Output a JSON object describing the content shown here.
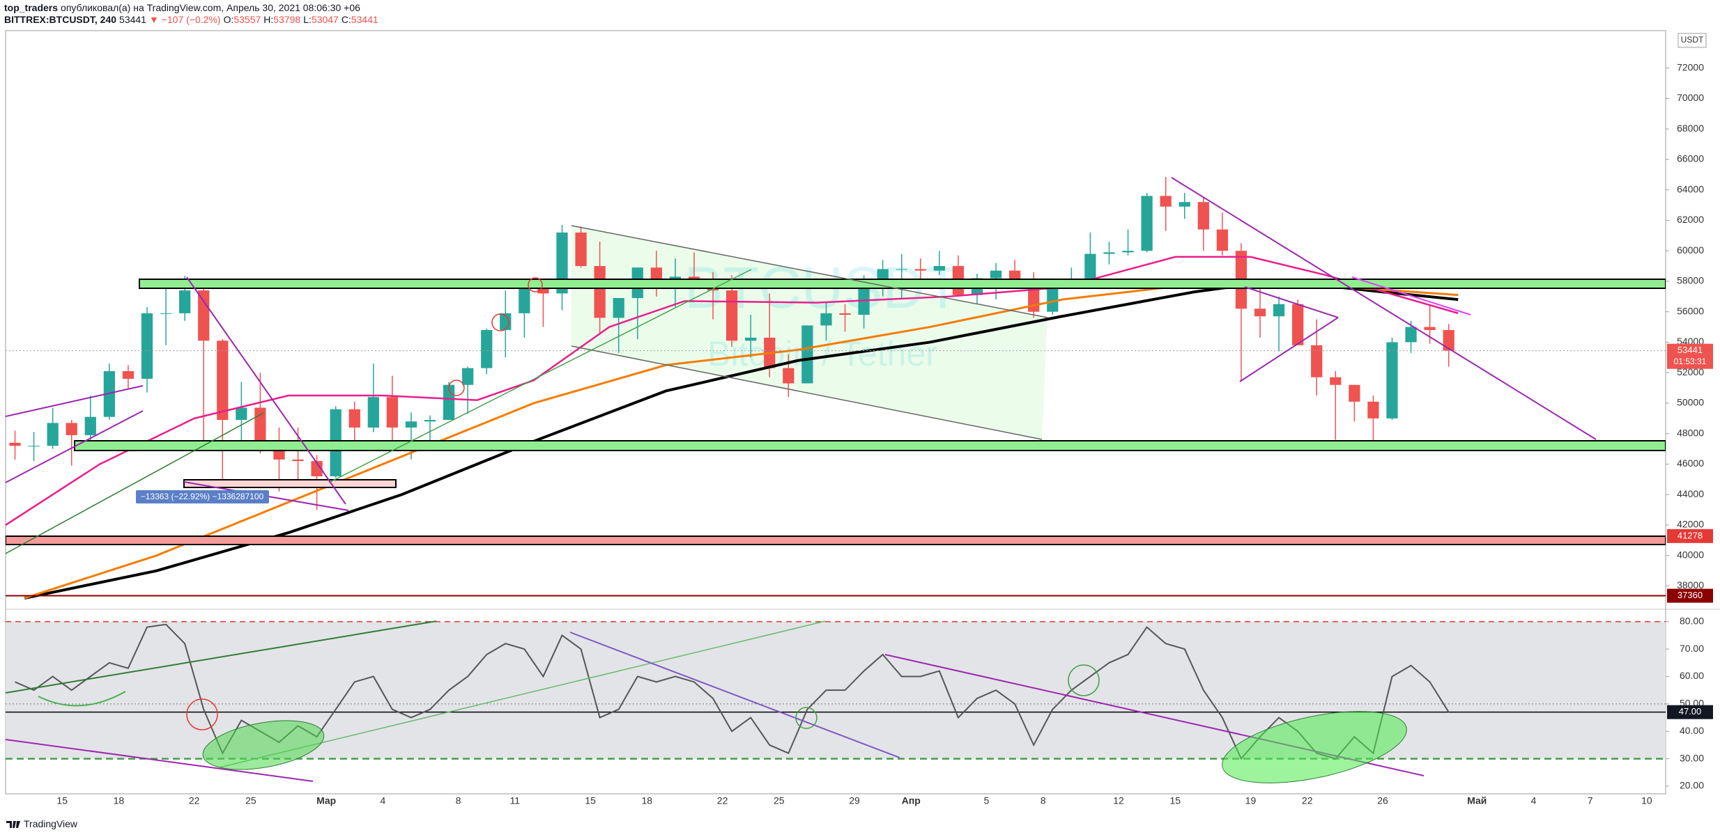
{
  "header": {
    "publisher": "top_traders",
    "published": "опубликовал(а) на TradingView.com, Апрель 30, 2021 08:06:30 +06",
    "symbol": "BITTREX:BTCUSDT, 240",
    "last": 53441,
    "change": "▼ −107 (−0.2%)",
    "ohlc": [
      {
        "label": "O:",
        "value": 53557
      },
      {
        "label": "H:",
        "value": 53798
      },
      {
        "label": "L:",
        "value": 53047
      },
      {
        "label": "C:",
        "value": 53441
      }
    ]
  },
  "footer": "TradingView",
  "chart_data": [
    {
      "type": "candlestick",
      "currency": "USDT",
      "watermark": {
        "symbol": "BTCUSDT",
        "name": "Bitcoin / Tether"
      },
      "annotation": "−13363 (−22.92%) −1336287100",
      "up_color": "#26a69a",
      "down_color": "#ef5350",
      "xlim": [
        "02-12",
        "05-11"
      ],
      "ylim": [
        37065,
        74450
      ],
      "yticks": [
        38000,
        40000,
        42000,
        44000,
        46000,
        48000,
        50000,
        52000,
        54000,
        56000,
        58000,
        60000,
        62000,
        64000,
        66000,
        68000,
        70000,
        72000
      ],
      "x": [
        "02-12",
        "02-13",
        "02-14",
        "02-15",
        "02-16",
        "02-17",
        "02-18",
        "02-19",
        "02-20",
        "02-21",
        "02-22",
        "02-23",
        "02-24",
        "02-25",
        "02-26",
        "02-27",
        "02-28",
        "03-01",
        "03-02",
        "03-03",
        "03-04",
        "03-05",
        "03-06",
        "03-07",
        "03-08",
        "03-09",
        "03-10",
        "03-11",
        "03-12",
        "03-13",
        "03-14",
        "03-15",
        "03-16",
        "03-17",
        "03-18",
        "03-19",
        "03-20",
        "03-21",
        "03-22",
        "03-23",
        "03-24",
        "03-25",
        "03-26",
        "03-27",
        "03-28",
        "03-29",
        "03-30",
        "03-31",
        "04-01",
        "04-02",
        "04-03",
        "04-04",
        "04-05",
        "04-06",
        "04-07",
        "04-08",
        "04-09",
        "04-10",
        "04-11",
        "04-12",
        "04-13",
        "04-14",
        "04-15",
        "04-16",
        "04-17",
        "04-18",
        "04-19",
        "04-20",
        "04-21",
        "04-22",
        "04-23",
        "04-24",
        "04-25",
        "04-26",
        "04-27",
        "04-28",
        "04-29"
      ],
      "open": [
        47400,
        47200,
        47200,
        48700,
        47900,
        49100,
        52100,
        51600,
        55900,
        55900,
        57400,
        54100,
        48900,
        49700,
        47000,
        46300,
        46200,
        45200,
        49600,
        48400,
        50400,
        48400,
        48800,
        48900,
        51200,
        52300,
        54800,
        55900,
        57800,
        57200,
        61200,
        59000,
        55600,
        56900,
        58900,
        57600,
        58300,
        58100,
        57400,
        54100,
        54300,
        52300,
        51300,
        55100,
        55900,
        55800,
        57600,
        58800,
        58800,
        58700,
        59000,
        57100,
        58200,
        58700,
        58000,
        56000,
        58100,
        58100,
        59800,
        59900,
        60000,
        63600,
        62900,
        63200,
        61400,
        60000,
        56200,
        55700,
        56500,
        53800,
        51700,
        51200,
        50100,
        49000,
        54000,
        55000,
        54800
      ],
      "high": [
        48200,
        48100,
        49700,
        48900,
        50500,
        52600,
        52500,
        56300,
        57500,
        58350,
        57500,
        54200,
        51400,
        52000,
        48400,
        48400,
        46600,
        49800,
        50100,
        52600,
        51800,
        49400,
        49200,
        51400,
        52400,
        54900,
        57400,
        58100,
        58000,
        61700,
        61600,
        60600,
        56900,
        58900,
        60000,
        59500,
        59900,
        58600,
        58400,
        55800,
        57200,
        53200,
        55100,
        56600,
        56500,
        58400,
        59400,
        59800,
        59500,
        60000,
        59700,
        58500,
        59200,
        59400,
        58600,
        58200,
        58900,
        61200,
        60600,
        61400,
        63800,
        64850,
        63800,
        63500,
        62500,
        60500,
        57600,
        57000,
        56800,
        55500,
        52100,
        51200,
        50500,
        54300,
        55400,
        56400,
        55200
      ],
      "low": [
        46300,
        46200,
        47000,
        45900,
        47200,
        48900,
        50900,
        50700,
        53800,
        55400,
        47000,
        44900,
        47000,
        46700,
        44200,
        45000,
        43000,
        45100,
        47100,
        48100,
        47500,
        46300,
        47100,
        48900,
        49300,
        51900,
        53000,
        54300,
        55000,
        56100,
        58900,
        54600,
        53300,
        54200,
        57000,
        56300,
        57800,
        55500,
        53700,
        53000,
        51700,
        50400,
        51300,
        54100,
        54700,
        54900,
        57000,
        56900,
        57900,
        58400,
        57000,
        56500,
        56800,
        57600,
        55600,
        55800,
        57600,
        57900,
        59100,
        59700,
        59900,
        61300,
        62100,
        60000,
        59700,
        51500,
        54300,
        53400,
        53800,
        50500,
        47600,
        48800,
        47100,
        48900,
        53300,
        53900,
        52400
      ],
      "close": [
        47200,
        47200,
        48700,
        47900,
        49100,
        52100,
        51600,
        55900,
        55900,
        57400,
        54100,
        48900,
        49700,
        47000,
        46300,
        46200,
        45200,
        49600,
        48400,
        50400,
        48400,
        48800,
        48900,
        51200,
        52300,
        54800,
        55900,
        57800,
        57200,
        61200,
        59000,
        55600,
        56900,
        58900,
        57600,
        58300,
        58100,
        57400,
        54100,
        54300,
        52300,
        51300,
        55100,
        55900,
        55800,
        57600,
        58800,
        58800,
        58700,
        59000,
        57100,
        58200,
        58700,
        58000,
        56000,
        58100,
        58100,
        59800,
        59900,
        60000,
        63600,
        62900,
        63200,
        61400,
        60000,
        56200,
        55700,
        56500,
        53800,
        51700,
        51200,
        50100,
        49000,
        54000,
        55000,
        54800,
        53441
      ],
      "moving_averages": [
        {
          "color": "#000000",
          "width": 4,
          "x": [
            "02-13",
            "02-20",
            "02-27",
            "03-05",
            "03-12",
            "03-19",
            "03-26",
            "04-02",
            "04-09",
            "04-16",
            "04-19",
            "04-23",
            "04-26",
            "04-30"
          ],
          "values": [
            37200,
            39000,
            41500,
            44000,
            47500,
            50800,
            52800,
            54000,
            55700,
            57300,
            57800,
            57700,
            57300,
            56800
          ]
        },
        {
          "color": "#f57c00",
          "width": 3,
          "x": [
            "02-13",
            "02-20",
            "02-27",
            "03-05",
            "03-12",
            "03-19",
            "03-26",
            "04-02",
            "04-09",
            "04-16",
            "04-23",
            "04-30"
          ],
          "values": [
            37200,
            40000,
            43500,
            46500,
            50000,
            52500,
            53500,
            55000,
            56800,
            57800,
            57700,
            57100
          ]
        },
        {
          "color": "#e91e8c",
          "width": 2.5,
          "x": [
            "02-12",
            "02-17",
            "02-22",
            "02-27",
            "03-04",
            "03-09",
            "03-12",
            "03-16",
            "03-20",
            "03-27",
            "04-03",
            "04-09",
            "04-15",
            "04-19",
            "04-23",
            "04-30"
          ],
          "values": [
            42000,
            46000,
            49000,
            50500,
            50500,
            50200,
            51500,
            55000,
            56700,
            56600,
            57000,
            57600,
            59600,
            59600,
            58400,
            55900
          ]
        }
      ],
      "price_labels": [
        {
          "value": 53441,
          "sub": "01:53:31",
          "color": "#ef5350",
          "line": "dotted"
        },
        {
          "value": 41278,
          "color": "#e53935"
        },
        {
          "value": 37360,
          "color": "#8b0000",
          "line": "solid"
        }
      ]
    },
    {
      "type": "line",
      "color": "#555555",
      "xlim": [
        "02-12",
        "05-11"
      ],
      "ylim": [
        17.2,
        81.2
      ],
      "yticks": [
        {
          "value": 20,
          "label": "20.00"
        },
        {
          "value": 30,
          "label": "30.00"
        },
        {
          "value": 40,
          "label": "40.00"
        },
        {
          "value": 50,
          "label": "50.00"
        },
        {
          "value": 60,
          "label": "60.00"
        },
        {
          "value": 70,
          "label": "70.00"
        },
        {
          "value": 80,
          "label": "80.00"
        }
      ],
      "levels": {
        "upper": 80,
        "middle": 50,
        "lower": 30
      },
      "price_label": {
        "value": 47,
        "label": "47.00"
      },
      "xticks": [
        {
          "value": "02-15",
          "label": "15"
        },
        {
          "value": "02-18",
          "label": "18"
        },
        {
          "value": "02-22",
          "label": "22"
        },
        {
          "value": "02-25",
          "label": "25"
        },
        {
          "value": "03-01",
          "label": "Мар"
        },
        {
          "value": "03-04",
          "label": "4"
        },
        {
          "value": "03-08",
          "label": "8"
        },
        {
          "value": "03-11",
          "label": "11"
        },
        {
          "value": "03-15",
          "label": "15"
        },
        {
          "value": "03-18",
          "label": "18"
        },
        {
          "value": "03-22",
          "label": "22"
        },
        {
          "value": "03-25",
          "label": "25"
        },
        {
          "value": "03-29",
          "label": "29"
        },
        {
          "value": "04-01",
          "label": "Апр"
        },
        {
          "value": "04-05",
          "label": "5"
        },
        {
          "value": "04-08",
          "label": "8"
        },
        {
          "value": "04-12",
          "label": "12"
        },
        {
          "value": "04-15",
          "label": "15"
        },
        {
          "value": "04-19",
          "label": "19"
        },
        {
          "value": "04-22",
          "label": "22"
        },
        {
          "value": "04-26",
          "label": "26"
        },
        {
          "value": "05-01",
          "label": "Май"
        },
        {
          "value": "05-04",
          "label": "4"
        },
        {
          "value": "05-07",
          "label": "7"
        },
        {
          "value": "05-10",
          "label": "10"
        }
      ],
      "x": [
        "02-12",
        "02-13",
        "02-14",
        "02-15",
        "02-16",
        "02-17",
        "02-18",
        "02-19",
        "02-20",
        "02-21",
        "02-22",
        "02-23",
        "02-24",
        "02-25",
        "02-26",
        "02-27",
        "02-28",
        "03-01",
        "03-02",
        "03-03",
        "03-04",
        "03-05",
        "03-06",
        "03-07",
        "03-08",
        "03-09",
        "03-10",
        "03-11",
        "03-12",
        "03-13",
        "03-14",
        "03-15",
        "03-16",
        "03-17",
        "03-18",
        "03-19",
        "03-20",
        "03-21",
        "03-22",
        "03-23",
        "03-24",
        "03-25",
        "03-26",
        "03-27",
        "03-28",
        "03-29",
        "03-30",
        "03-31",
        "04-01",
        "04-02",
        "04-03",
        "04-04",
        "04-05",
        "04-06",
        "04-07",
        "04-08",
        "04-09",
        "04-10",
        "04-11",
        "04-12",
        "04-13",
        "04-14",
        "04-15",
        "04-16",
        "04-17",
        "04-18",
        "04-19",
        "04-20",
        "04-21",
        "04-22",
        "04-23",
        "04-24",
        "04-25",
        "04-26",
        "04-27",
        "04-28",
        "04-29"
      ],
      "values": [
        58,
        55,
        60,
        55,
        60,
        65,
        63,
        78,
        79,
        72,
        48,
        32,
        44,
        40,
        36,
        42,
        38,
        48,
        58,
        60,
        48,
        45,
        48,
        55,
        60,
        68,
        72,
        70,
        60,
        75,
        70,
        45,
        48,
        60,
        58,
        60,
        58,
        52,
        40,
        45,
        35,
        32,
        48,
        55,
        55,
        62,
        68,
        60,
        60,
        62,
        45,
        52,
        55,
        50,
        35,
        48,
        55,
        60,
        65,
        68,
        78,
        72,
        70,
        55,
        45,
        30,
        38,
        45,
        40,
        32,
        30,
        38,
        32,
        60,
        64,
        58,
        47
      ]
    }
  ]
}
